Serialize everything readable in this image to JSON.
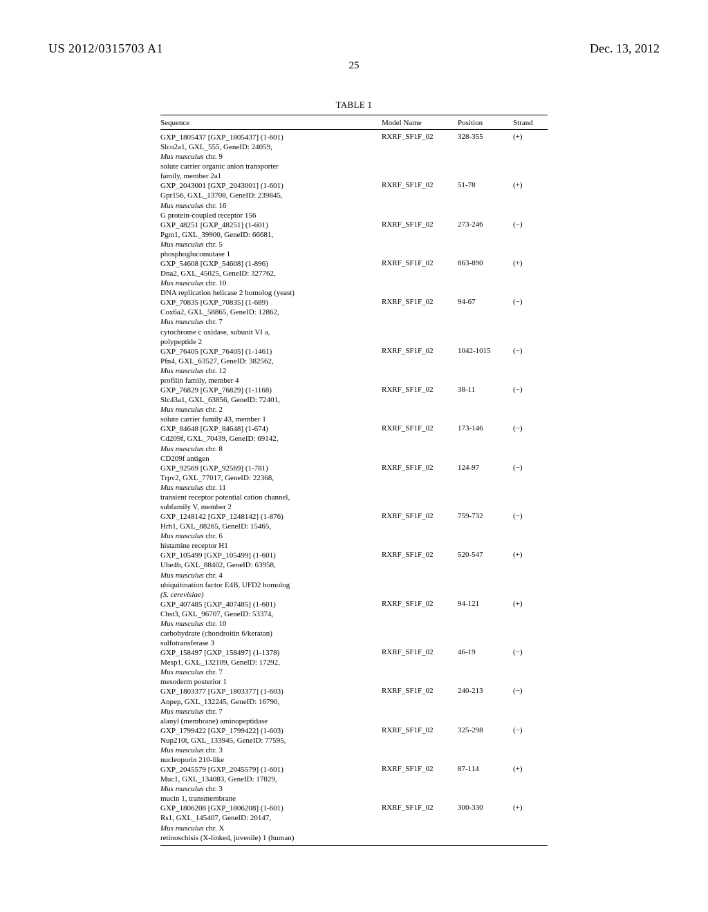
{
  "header": {
    "docNumber": "US 2012/0315703 A1",
    "docDate": "Dec. 13, 2012",
    "pageNumber": "25"
  },
  "table": {
    "title": "TABLE 1",
    "columns": [
      "Sequence",
      "Model Name",
      "Position",
      "Strand"
    ],
    "rows": [
      {
        "sequence": [
          {
            "text": "GXP_1805437 [GXP_1805437] (1-601)",
            "italic": false
          },
          {
            "text": "Slco2a1, GXL_555, GeneID: 24059,",
            "italic": false
          },
          {
            "text": "Mus musculus chr. 9",
            "italic": true,
            "suffix": ""
          },
          {
            "text": "solute carrier organic anion transporter",
            "italic": false
          },
          {
            "text": "family, member 2a1",
            "italic": false
          }
        ],
        "model": "RXRF_SF1F_02",
        "position": "328-355",
        "strand": "(+)"
      },
      {
        "sequence": [
          {
            "text": "GXP_2043001 [GXP_2043001] (1-601)",
            "italic": false
          },
          {
            "text": "Gpr156, GXL_13708, GeneID: 239845,",
            "italic": false
          },
          {
            "text": "Mus musculus chr. 16",
            "italic": true
          },
          {
            "text": "G protein-coupled receptor 156",
            "italic": false
          }
        ],
        "model": "RXRF_SF1F_02",
        "position": "51-78",
        "strand": "(+)"
      },
      {
        "sequence": [
          {
            "text": "GXP_48251 [GXP_48251] (1-601)",
            "italic": false
          },
          {
            "text": "Pgm1, GXL_39900, GeneID: 66681,",
            "italic": false
          },
          {
            "text": "Mus musculus chr. 5",
            "italic": true
          },
          {
            "text": "phosphoglucomutase 1",
            "italic": false
          }
        ],
        "model": "RXRF_SF1F_02",
        "position": "273-246",
        "strand": "(−)"
      },
      {
        "sequence": [
          {
            "text": "GXP_54608 [GXP_54608] (1-896)",
            "italic": false
          },
          {
            "text": "Dna2, GXL_45025, GeneID: 327762,",
            "italic": false
          },
          {
            "text": "Mus musculus chr. 10",
            "italic": true
          },
          {
            "text": "DNA replication helicase 2 homolog (yeast)",
            "italic": false
          }
        ],
        "model": "RXRF_SF1F_02",
        "position": "863-890",
        "strand": "(+)"
      },
      {
        "sequence": [
          {
            "text": "GXP_70835 [GXP_70835] (1-689)",
            "italic": false
          },
          {
            "text": "Cox6a2, GXL_58865, GeneID: 12862,",
            "italic": false
          },
          {
            "text": "Mus musculus chr. 7",
            "italic": true
          },
          {
            "text": "cytochrome c oxidase, subunit VI a,",
            "italic": false
          },
          {
            "text": "polypeptide 2",
            "italic": false
          }
        ],
        "model": "RXRF_SF1F_02",
        "position": "94-67",
        "strand": "(−)"
      },
      {
        "sequence": [
          {
            "text": "GXP_76405 [GXP_76405] (1-1461)",
            "italic": false
          },
          {
            "text": "Pfn4, GXL_63527, GeneID: 382562,",
            "italic": false
          },
          {
            "text": "Mus musculus chr. 12",
            "italic": true
          },
          {
            "text": "profilin family, member 4",
            "italic": false
          }
        ],
        "model": "RXRF_SF1F_02",
        "position": "1042-1015",
        "strand": "(−)"
      },
      {
        "sequence": [
          {
            "text": "GXP_76829 [GXP_76829] (1-1168)",
            "italic": false
          },
          {
            "text": "Slc43a1, GXL_63856, GeneID: 72401,",
            "italic": false
          },
          {
            "text": "Mus musculus chr. 2",
            "italic": true
          },
          {
            "text": "solute carrier family 43, member 1",
            "italic": false
          }
        ],
        "model": "RXRF_SF1F_02",
        "position": "38-11",
        "strand": "(−)"
      },
      {
        "sequence": [
          {
            "text": "GXP_84648 [GXP_84648] (1-674)",
            "italic": false
          },
          {
            "text": "Cd209f, GXL_70439, GeneID: 69142,",
            "italic": false
          },
          {
            "text": "Mus musculus chr. 8",
            "italic": true
          },
          {
            "text": "CD209f antigen",
            "italic": false
          }
        ],
        "model": "RXRF_SF1F_02",
        "position": "173-146",
        "strand": "(−)"
      },
      {
        "sequence": [
          {
            "text": "GXP_92569 [GXP_92569] (1-781)",
            "italic": false
          },
          {
            "text": "Trpv2, GXL_77017, GeneID: 22368,",
            "italic": false
          },
          {
            "text": "Mus musculus chr. 11",
            "italic": true
          },
          {
            "text": "transient receptor potential cation channel,",
            "italic": false
          },
          {
            "text": "subfamily V, member 2",
            "italic": false
          }
        ],
        "model": "RXRF_SF1F_02",
        "position": "124-97",
        "strand": "(−)"
      },
      {
        "sequence": [
          {
            "text": "GXP_1248142 [GXP_1248142] (1-876)",
            "italic": false
          },
          {
            "text": "Hrh1, GXL_88265, GeneID: 15465,",
            "italic": false
          },
          {
            "text": "Mus musculus chr. 6",
            "italic": true
          },
          {
            "text": "histamine receptor H1",
            "italic": false
          }
        ],
        "model": "RXRF_SF1F_02",
        "position": "759-732",
        "strand": "(−)"
      },
      {
        "sequence": [
          {
            "text": "GXP_105499 [GXP_105499] (1-601)",
            "italic": false
          },
          {
            "text": "Ube4b, GXL_88402, GeneID: 63958,",
            "italic": false
          },
          {
            "text": "Mus musculus chr. 4",
            "italic": true
          },
          {
            "text": "ubiquitination factor E4B, UFD2 homolog",
            "italic": false
          },
          {
            "text": "(S. cerevisiae)",
            "italic": true
          }
        ],
        "model": "RXRF_SF1F_02",
        "position": "520-547",
        "strand": "(+)"
      },
      {
        "sequence": [
          {
            "text": "GXP_407485 [GXP_407485] (1-601)",
            "italic": false
          },
          {
            "text": "Chst3, GXL_96707, GeneID: 53374,",
            "italic": false
          },
          {
            "text": "Mus musculus chr. 10",
            "italic": true
          },
          {
            "text": "carbohydrate (chondroitin 6/keratan)",
            "italic": false
          },
          {
            "text": "sulfotransferase 3",
            "italic": false
          }
        ],
        "model": "RXRF_SF1F_02",
        "position": "94-121",
        "strand": "(+)"
      },
      {
        "sequence": [
          {
            "text": "GXP_158497 [GXP_158497] (1-1378)",
            "italic": false
          },
          {
            "text": "Mesp1, GXL_132109, GeneID: 17292,",
            "italic": false
          },
          {
            "text": "Mus musculus chr. 7",
            "italic": true
          },
          {
            "text": "mesoderm posterior 1",
            "italic": false
          }
        ],
        "model": "RXRF_SF1F_02",
        "position": "46-19",
        "strand": "(−)"
      },
      {
        "sequence": [
          {
            "text": "GXP_1803377 [GXP_1803377] (1-603)",
            "italic": false
          },
          {
            "text": "Anpep, GXL_132245, GeneID: 16790,",
            "italic": false
          },
          {
            "text": "Mus musculus chr. 7",
            "italic": true
          },
          {
            "text": "alanyl (membrane) aminopeptidase",
            "italic": false
          }
        ],
        "model": "RXRF_SF1F_02",
        "position": "240-213",
        "strand": "(−)"
      },
      {
        "sequence": [
          {
            "text": "GXP_1799422 [GXP_1799422] (1-603)",
            "italic": false
          },
          {
            "text": "Nup210l, GXL_133945, GeneID: 77595,",
            "italic": false
          },
          {
            "text": "Mus musculus chr. 3",
            "italic": true
          },
          {
            "text": "nucleoporin 210-like",
            "italic": false
          }
        ],
        "model": "RXRF_SF1F_02",
        "position": "325-298",
        "strand": "(−)"
      },
      {
        "sequence": [
          {
            "text": "GXP_2045579 [GXP_2045579] (1-601)",
            "italic": false
          },
          {
            "text": "Muc1, GXL_134083, GeneID: 17829,",
            "italic": false
          },
          {
            "text": "Mus musculus chr. 3",
            "italic": true
          },
          {
            "text": "mucin 1, transmembrane",
            "italic": false
          }
        ],
        "model": "RXRF_SF1F_02",
        "position": "87-114",
        "strand": "(+)"
      },
      {
        "sequence": [
          {
            "text": "GXP_1806208 [GXP_1806208] (1-601)",
            "italic": false
          },
          {
            "text": "Rs1, GXL_145407, GeneID: 20147,",
            "italic": false
          },
          {
            "text": "Mus musculus chr. X",
            "italic": true
          },
          {
            "text": "retinoschisis (X-linked, juvenile) 1 (human)",
            "italic": false
          }
        ],
        "model": "RXRF_SF1F_02",
        "position": "300-330",
        "strand": "(+)"
      }
    ]
  }
}
